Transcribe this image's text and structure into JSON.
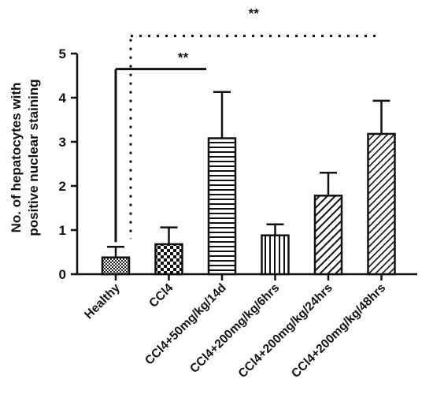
{
  "chart_data": {
    "type": "bar",
    "title": "",
    "xlabel": "",
    "ylabel_lines": [
      "No. of hepatocytes with",
      "positive nuclear staining"
    ],
    "ylim": [
      0,
      5
    ],
    "yticks": [
      "0",
      "1",
      "2",
      "3",
      "4",
      "5"
    ],
    "grid": false,
    "categories": [
      "Healthy",
      "CCl4",
      "CCl4+50mg/kg/14d",
      "CCl4+200mg/kg/6hrs",
      "CCl4+200mg/kg/24hrs",
      "CCl4+200mg/kg/48hrs"
    ],
    "values": [
      0.38,
      0.68,
      3.08,
      0.88,
      1.78,
      3.18
    ],
    "errors": [
      0.24,
      0.38,
      1.05,
      0.25,
      0.52,
      0.75
    ],
    "patterns": [
      "dense-check",
      "checker",
      "horizontal-lines",
      "vertical-lines",
      "diagonal-lines",
      "diagonal-lines-fine"
    ],
    "significance": [
      {
        "label": "**",
        "from": "Healthy",
        "to": "CCl4+50mg/kg/14d",
        "style": "solid",
        "level": 4.65
      },
      {
        "label": "**",
        "from": "Healthy",
        "to": "CCl4+200mg/kg/48hrs",
        "style": "dotted",
        "level": 5.4
      }
    ]
  }
}
